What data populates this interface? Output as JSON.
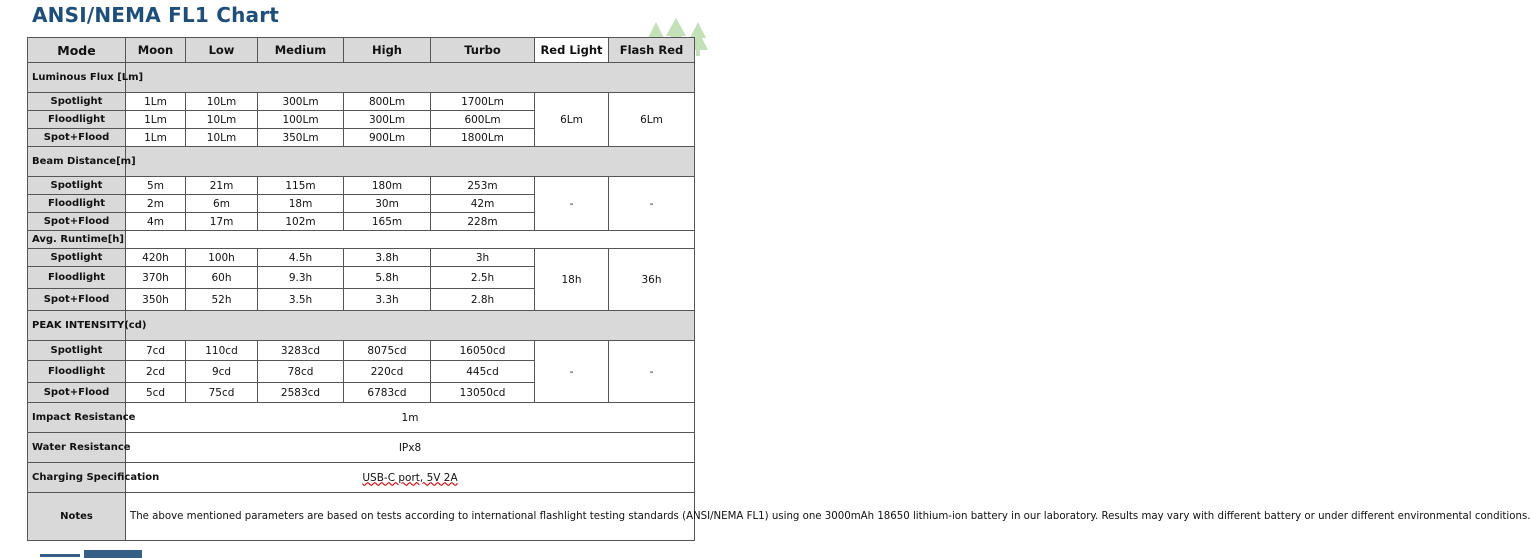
{
  "title": "ANSI/NEMA FL1 Chart",
  "columns": [
    "Mode",
    "Moon",
    "Low",
    "Medium",
    "High",
    "Turbo",
    "Red Light",
    "Flash Red"
  ],
  "flux": {
    "label": "Luminous Flux [Lm]",
    "rows": [
      {
        "name": "Spotlight",
        "values": [
          "1Lm",
          "10Lm",
          "300Lm",
          "800Lm",
          "1700Lm"
        ]
      },
      {
        "name": "Floodlight",
        "values": [
          "1Lm",
          "10Lm",
          "100Lm",
          "300Lm",
          "600Lm"
        ]
      },
      {
        "name": "Spot+Flood",
        "values": [
          "1Lm",
          "10Lm",
          "350Lm",
          "900Lm",
          "1800Lm"
        ]
      }
    ],
    "red": "6Lm",
    "flash": "6Lm"
  },
  "beam": {
    "label": "Beam Distance[m]",
    "rows": [
      {
        "name": "Spotlight",
        "values": [
          "5m",
          "21m",
          "115m",
          "180m",
          "253m"
        ]
      },
      {
        "name": "Floodlight",
        "values": [
          "2m",
          "6m",
          "18m",
          "30m",
          "42m"
        ]
      },
      {
        "name": "Spot+Flood",
        "values": [
          "4m",
          "17m",
          "102m",
          "165m",
          "228m"
        ]
      }
    ],
    "red": "-",
    "flash": "-"
  },
  "runtime": {
    "label": "Avg. Runtime[h]",
    "rows": [
      {
        "name": "Spotlight",
        "values": [
          "420h",
          "100h",
          "4.5h",
          "3.8h",
          "3h"
        ]
      },
      {
        "name": "Floodlight",
        "values": [
          "370h",
          "60h",
          "9.3h",
          "5.8h",
          "2.5h"
        ]
      },
      {
        "name": "Spot+Flood",
        "values": [
          "350h",
          "52h",
          "3.5h",
          "3.3h",
          "2.8h"
        ]
      }
    ],
    "red": "18h",
    "flash": "36h"
  },
  "peak": {
    "label": "PEAK INTENSITY(cd)",
    "rows": [
      {
        "name": "Spotlight",
        "values": [
          "7cd",
          "110cd",
          "3283cd",
          "8075cd",
          "16050cd"
        ]
      },
      {
        "name": "Floodlight",
        "values": [
          "2cd",
          "9cd",
          "78cd",
          "220cd",
          "445cd"
        ]
      },
      {
        "name": "Spot+Flood",
        "values": [
          "5cd",
          "75cd",
          "2583cd",
          "6783cd",
          "13050cd"
        ]
      }
    ],
    "red": "-",
    "flash": "-"
  },
  "impact": {
    "label": "Impact Resistance",
    "value": "1m"
  },
  "water": {
    "label": "Water Resistance",
    "value": "IPx8"
  },
  "charging": {
    "label": "Charging Specification",
    "value": "USB-C port, 5V 2A"
  },
  "notes": {
    "label": "Notes",
    "text": "The above mentioned parameters are based on tests according to international flashlight testing standards (ANSI/NEMA FL1) using one 3000mAh 18650 lithium-ion battery in our laboratory. Results may vary with different battery or under different environmental conditions."
  },
  "colors": {
    "title": "#1f4e79",
    "header_fill": "#d9d9d9",
    "logo": "#8fbf7f"
  },
  "icons": {
    "logo": "pine-trees-logo-icon"
  }
}
